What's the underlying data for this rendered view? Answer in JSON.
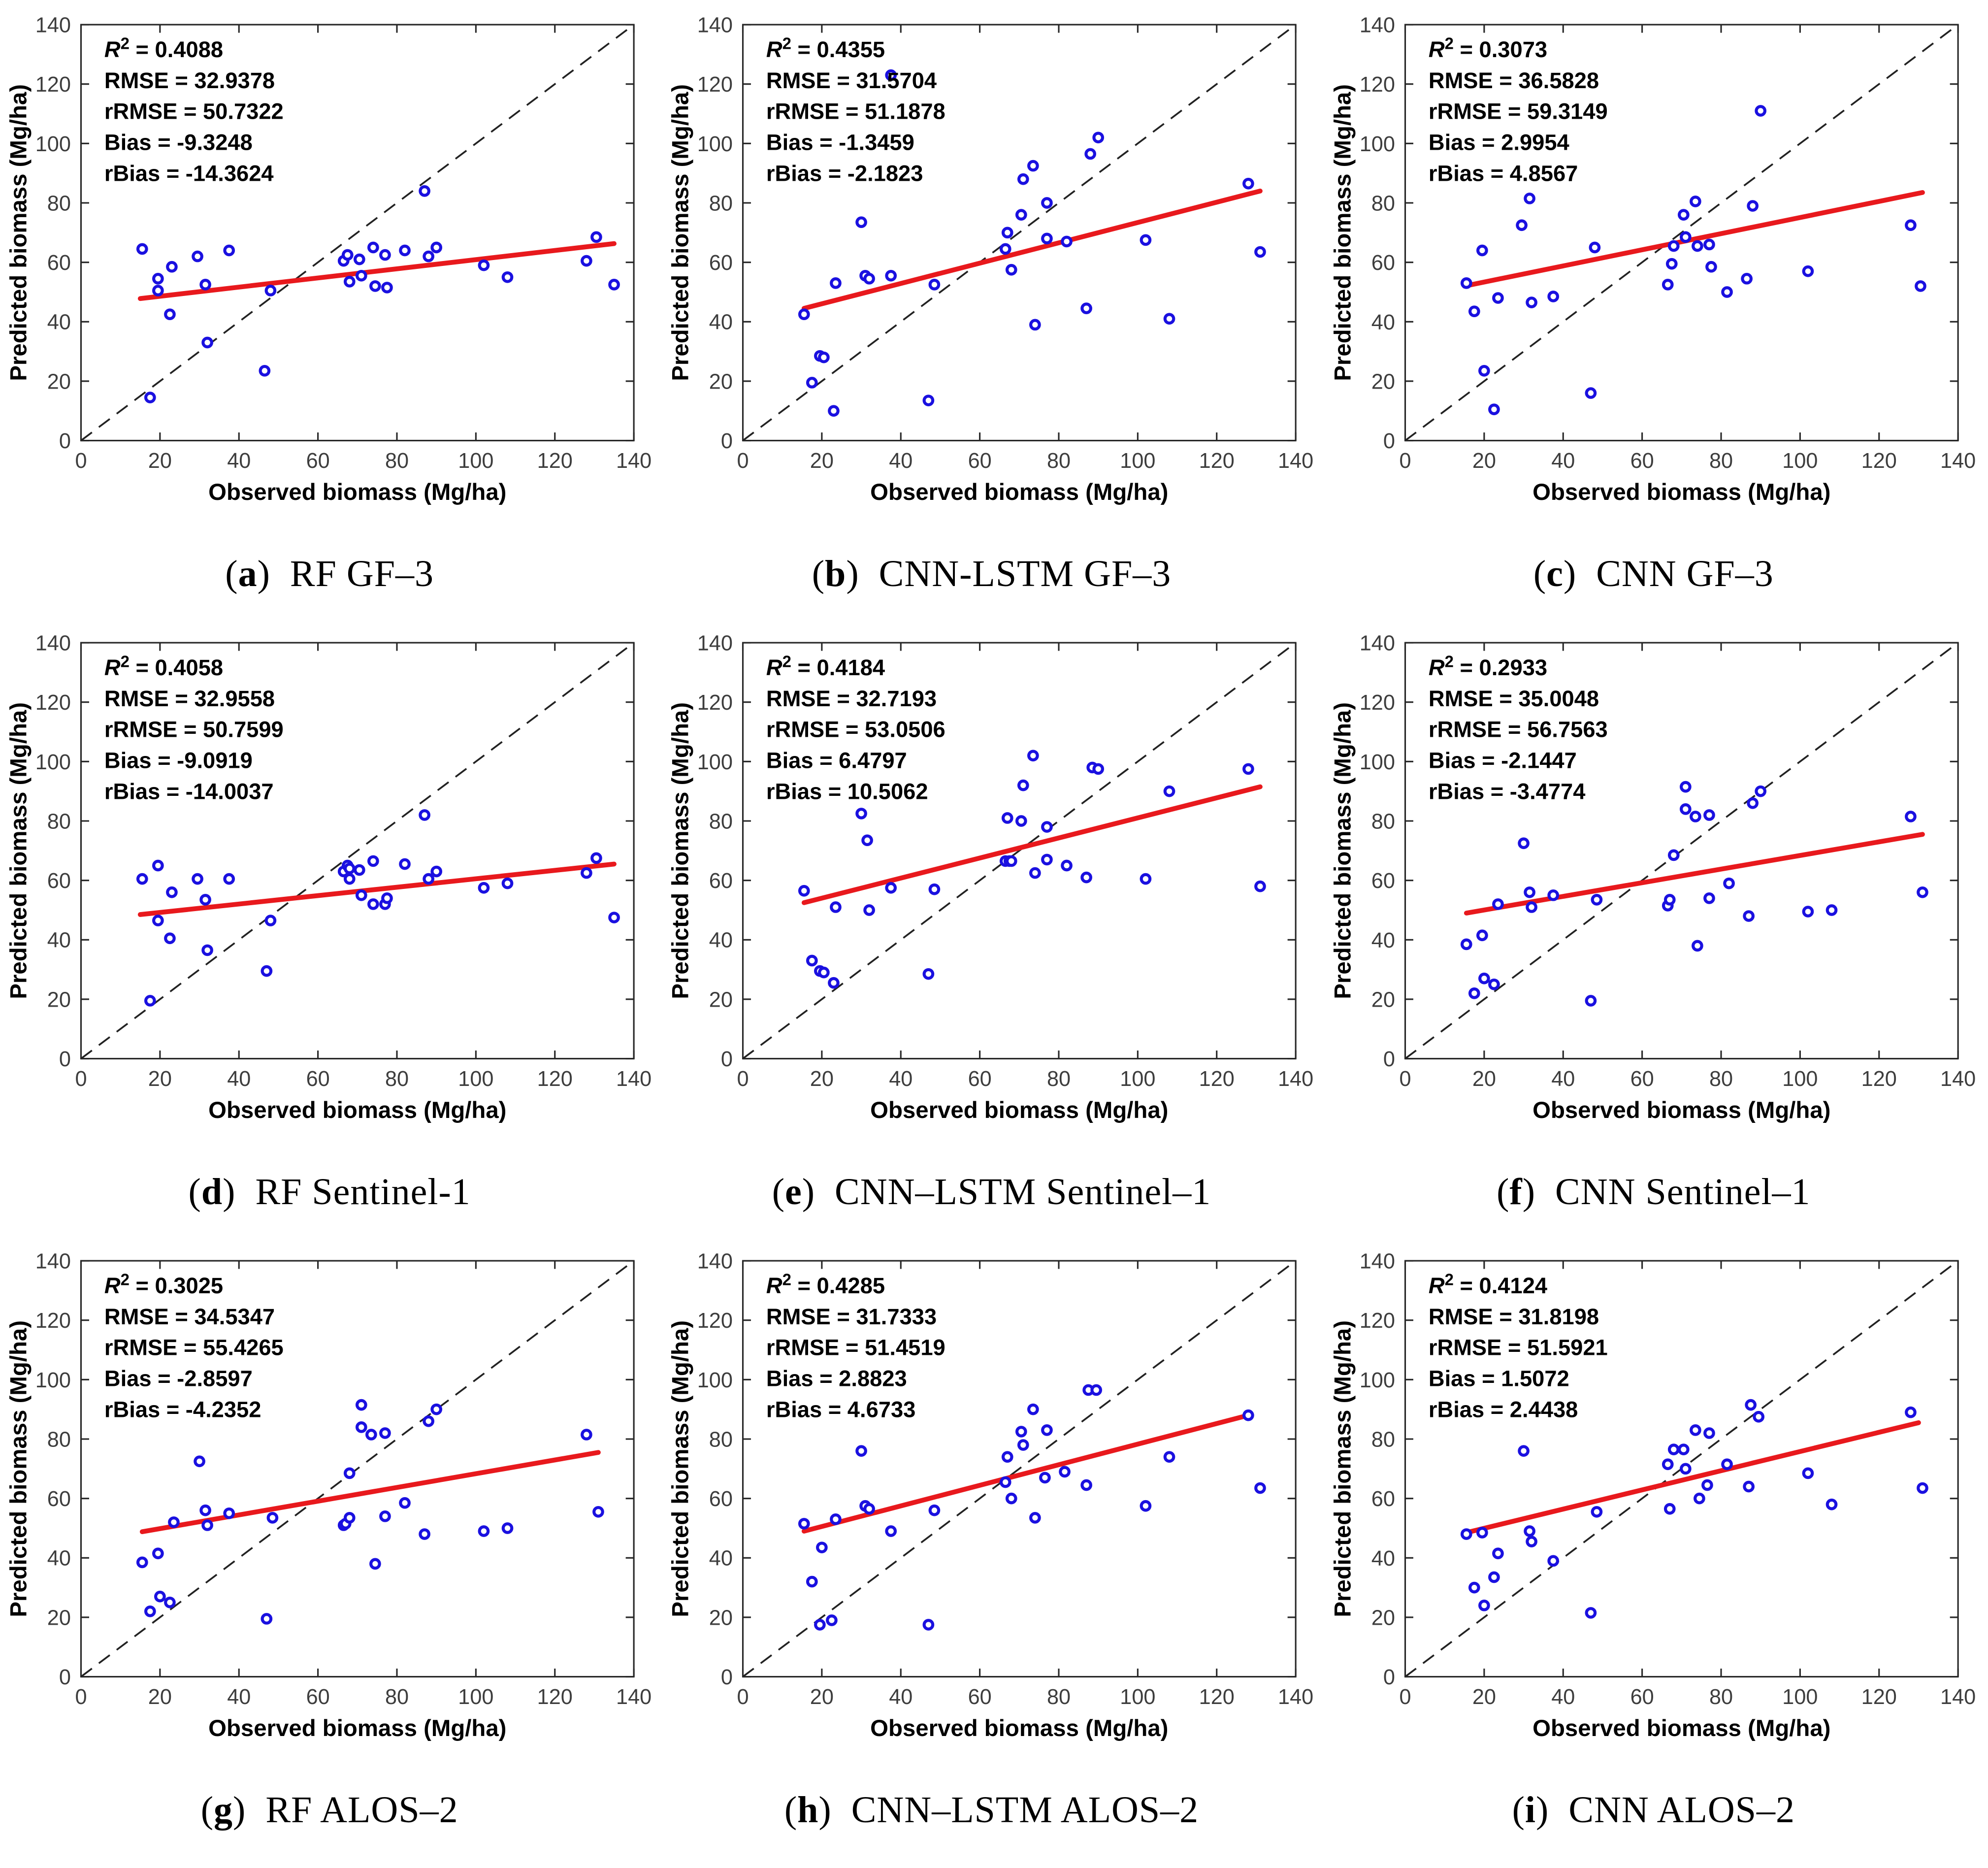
{
  "figure": {
    "paren_open": "(",
    "paren_close": ")",
    "eq": " = "
  },
  "axes": {
    "xlabel": "Observed biomass (Mg/ha)",
    "ylabel": "Predicted biomass (Mg/ha)",
    "xlim": [
      0,
      140
    ],
    "ylim": [
      0,
      140
    ],
    "ticks": [
      0,
      20,
      40,
      60,
      80,
      100,
      120,
      140
    ],
    "grid": "off",
    "legend": "none",
    "identity_line": "dashed 1:1"
  },
  "colors": {
    "marker": "#1a10e0",
    "marker_center": "#ffffff",
    "fit_line": "#e8191d",
    "identity_line": "#222222",
    "axis": "#262626",
    "tick_label": "#3d3d3d",
    "stats_text": "#000000"
  },
  "stats_labels": [
    {
      "key": "r2",
      "label": "R",
      "sup": "2"
    },
    {
      "key": "rmse",
      "label": "RMSE"
    },
    {
      "key": "rrmse",
      "label": "rRMSE"
    },
    {
      "key": "bias",
      "label": "Bias"
    },
    {
      "key": "rbias",
      "label": "rBias"
    }
  ],
  "chart_data": [
    {
      "type": "scatter",
      "letter": "a",
      "label": "RF GF–3",
      "stats": {
        "r2": "0.4088",
        "rmse": "32.9378",
        "rrmse": "50.7322",
        "bias": "-9.3248",
        "rbias": "-14.3624"
      },
      "fit": [
        [
          15,
          47.8
        ],
        [
          135,
          66.3
        ]
      ],
      "points": [
        [
          15.5,
          64.5
        ],
        [
          17.5,
          14.5
        ],
        [
          19.5,
          54.5
        ],
        [
          19.5,
          50.5
        ],
        [
          22.5,
          42.5
        ],
        [
          23,
          58.5
        ],
        [
          29.5,
          62
        ],
        [
          31.5,
          52.5
        ],
        [
          32,
          33
        ],
        [
          37.5,
          64
        ],
        [
          46.5,
          23.5
        ],
        [
          48,
          50.5
        ],
        [
          66.5,
          60.5
        ],
        [
          67.5,
          62.5
        ],
        [
          68,
          53.5
        ],
        [
          70.5,
          61
        ],
        [
          71,
          55.5
        ],
        [
          74,
          65
        ],
        [
          74.5,
          52
        ],
        [
          77,
          62.5
        ],
        [
          77.5,
          51.5
        ],
        [
          82,
          64
        ],
        [
          87,
          84
        ],
        [
          88,
          62
        ],
        [
          90,
          65
        ],
        [
          102,
          59
        ],
        [
          108,
          55
        ],
        [
          128,
          60.5
        ],
        [
          130.5,
          68.5
        ],
        [
          135,
          52.5
        ]
      ]
    },
    {
      "type": "scatter",
      "letter": "b",
      "label": "CNN-LSTM GF–3",
      "stats": {
        "r2": "0.4355",
        "rmse": "31.5704",
        "rrmse": "51.1878",
        "bias": "-1.3459",
        "rbias": "-2.1823"
      },
      "fit": [
        [
          15.5,
          44.5
        ],
        [
          131,
          84
        ]
      ],
      "points": [
        [
          15.5,
          42.5
        ],
        [
          17.5,
          19.5
        ],
        [
          19.5,
          28.5
        ],
        [
          20.5,
          28
        ],
        [
          23,
          10
        ],
        [
          23.5,
          53
        ],
        [
          30,
          73.5
        ],
        [
          31,
          55.5
        ],
        [
          32,
          54.5
        ],
        [
          37.5,
          123
        ],
        [
          37.5,
          55.5
        ],
        [
          47,
          13.5
        ],
        [
          48.5,
          52.5
        ],
        [
          66.5,
          64.5
        ],
        [
          67,
          70
        ],
        [
          68,
          57.5
        ],
        [
          70.5,
          76
        ],
        [
          71,
          88
        ],
        [
          73.5,
          92.5
        ],
        [
          74,
          39
        ],
        [
          77,
          80
        ],
        [
          77,
          68
        ],
        [
          82,
          67
        ],
        [
          87,
          44.5
        ],
        [
          88,
          96.5
        ],
        [
          90,
          102
        ],
        [
          102,
          67.5
        ],
        [
          108,
          41
        ],
        [
          128,
          86.5
        ],
        [
          131,
          63.5
        ]
      ]
    },
    {
      "type": "scatter",
      "letter": "c",
      "label": "CNN GF–3",
      "stats": {
        "r2": "0.3073",
        "rmse": "36.5828",
        "rrmse": "59.3149",
        "bias": "2.9954",
        "rbias": "4.8567"
      },
      "fit": [
        [
          15,
          52
        ],
        [
          131,
          83.5
        ]
      ],
      "points": [
        [
          15.5,
          53
        ],
        [
          17.5,
          43.5
        ],
        [
          19.5,
          64
        ],
        [
          20,
          23.5
        ],
        [
          22.5,
          10.5
        ],
        [
          23.5,
          48
        ],
        [
          29.5,
          72.5
        ],
        [
          31.5,
          81.5
        ],
        [
          32,
          46.5
        ],
        [
          37.5,
          48.5
        ],
        [
          47,
          16
        ],
        [
          48,
          65
        ],
        [
          66.5,
          52.5
        ],
        [
          67.5,
          59.5
        ],
        [
          68,
          65.5
        ],
        [
          70.5,
          76
        ],
        [
          71,
          68.5
        ],
        [
          73.5,
          80.5
        ],
        [
          74,
          65.5
        ],
        [
          77,
          66
        ],
        [
          77.5,
          58.5
        ],
        [
          81.5,
          50
        ],
        [
          86.5,
          54.5
        ],
        [
          88,
          79
        ],
        [
          90,
          111
        ],
        [
          102,
          57
        ],
        [
          128,
          72.5
        ],
        [
          130.5,
          52
        ]
      ]
    },
    {
      "type": "scatter",
      "letter": "d",
      "label": "RF Sentinel-1",
      "stats": {
        "r2": "0.4058",
        "rmse": "32.9558",
        "rrmse": "50.7599",
        "bias": "-9.0919",
        "rbias": "-14.0037"
      },
      "fit": [
        [
          15,
          48.5
        ],
        [
          135,
          65.5
        ]
      ],
      "points": [
        [
          15.5,
          60.5
        ],
        [
          17.5,
          19.5
        ],
        [
          19.5,
          65
        ],
        [
          19.5,
          46.5
        ],
        [
          22.5,
          40.5
        ],
        [
          23,
          56
        ],
        [
          29.5,
          60.5
        ],
        [
          31.5,
          53.5
        ],
        [
          32,
          36.5
        ],
        [
          37.5,
          60.5
        ],
        [
          47,
          29.5
        ],
        [
          48,
          46.5
        ],
        [
          66.5,
          63
        ],
        [
          67.5,
          65
        ],
        [
          68,
          64
        ],
        [
          68,
          60.5
        ],
        [
          70.5,
          63.5
        ],
        [
          71,
          55
        ],
        [
          74,
          66.5
        ],
        [
          74,
          52
        ],
        [
          77,
          52
        ],
        [
          77.5,
          54
        ],
        [
          82,
          65.5
        ],
        [
          87,
          82
        ],
        [
          88,
          60.5
        ],
        [
          90,
          63
        ],
        [
          102,
          57.5
        ],
        [
          108,
          59
        ],
        [
          128,
          62.5
        ],
        [
          130.5,
          67.5
        ],
        [
          135,
          47.5
        ]
      ]
    },
    {
      "type": "scatter",
      "letter": "e",
      "label": "CNN–LSTM Sentinel–1",
      "stats": {
        "r2": "0.4184",
        "rmse": "32.7193",
        "rrmse": "53.0506",
        "bias": "6.4797",
        "rbias": "10.5062"
      },
      "fit": [
        [
          15.5,
          52.5
        ],
        [
          131,
          91.5
        ]
      ],
      "points": [
        [
          15.5,
          56.5
        ],
        [
          17.5,
          33
        ],
        [
          19.5,
          29.5
        ],
        [
          20.5,
          29
        ],
        [
          23,
          25.5
        ],
        [
          23.5,
          51
        ],
        [
          30,
          82.5
        ],
        [
          31.5,
          73.5
        ],
        [
          32,
          50
        ],
        [
          37.5,
          57.5
        ],
        [
          47,
          28.5
        ],
        [
          48.5,
          57
        ],
        [
          66.5,
          66.5
        ],
        [
          67,
          81
        ],
        [
          67.5,
          66.5
        ],
        [
          68,
          66.5
        ],
        [
          70.5,
          80
        ],
        [
          71,
          92
        ],
        [
          73.5,
          102
        ],
        [
          74,
          62.5
        ],
        [
          77,
          78
        ],
        [
          77,
          67
        ],
        [
          82,
          65
        ],
        [
          87,
          61
        ],
        [
          88.5,
          98
        ],
        [
          90,
          97.5
        ],
        [
          102,
          60.5
        ],
        [
          108,
          90
        ],
        [
          128,
          97.5
        ],
        [
          131,
          58
        ]
      ]
    },
    {
      "type": "scatter",
      "letter": "f",
      "label": "CNN Sentinel–1",
      "stats": {
        "r2": "0.2933",
        "rmse": "35.0048",
        "rrmse": "56.7563",
        "bias": "-2.1447",
        "rbias": "-3.4774"
      },
      "fit": [
        [
          15.5,
          49
        ],
        [
          131,
          75.5
        ]
      ],
      "points": [
        [
          15.5,
          38.5
        ],
        [
          17.5,
          22
        ],
        [
          19.5,
          41.5
        ],
        [
          20,
          27
        ],
        [
          22.5,
          25
        ],
        [
          23.5,
          52
        ],
        [
          30,
          72.5
        ],
        [
          31.5,
          56
        ],
        [
          32,
          51
        ],
        [
          37.5,
          55
        ],
        [
          47,
          19.5
        ],
        [
          48.5,
          53.5
        ],
        [
          66.5,
          51.5
        ],
        [
          67,
          53.5
        ],
        [
          68,
          68.5
        ],
        [
          71,
          91.5
        ],
        [
          71,
          84
        ],
        [
          73.5,
          81.5
        ],
        [
          74,
          38
        ],
        [
          77,
          82
        ],
        [
          77,
          54
        ],
        [
          82,
          59
        ],
        [
          87,
          48
        ],
        [
          88,
          86
        ],
        [
          90,
          90
        ],
        [
          102,
          49.5
        ],
        [
          108,
          50
        ],
        [
          128,
          81.5
        ],
        [
          131,
          56
        ]
      ]
    },
    {
      "type": "scatter",
      "letter": "g",
      "label": "RF ALOS–2",
      "stats": {
        "r2": "0.3025",
        "rmse": "34.5347",
        "rrmse": "55.4265",
        "bias": "-2.8597",
        "rbias": "-4.2352"
      },
      "fit": [
        [
          15.5,
          48.8
        ],
        [
          131,
          75.5
        ]
      ],
      "points": [
        [
          15.5,
          38.5
        ],
        [
          17.5,
          22
        ],
        [
          19.5,
          41.5
        ],
        [
          20,
          27
        ],
        [
          22.5,
          25
        ],
        [
          23.5,
          52
        ],
        [
          30,
          72.5
        ],
        [
          31.5,
          56
        ],
        [
          32,
          51
        ],
        [
          37.5,
          55
        ],
        [
          47,
          19.5
        ],
        [
          48.5,
          53.5
        ],
        [
          66.5,
          51
        ],
        [
          67,
          51.5
        ],
        [
          68,
          53.5
        ],
        [
          68,
          68.5
        ],
        [
          71,
          91.5
        ],
        [
          71,
          84
        ],
        [
          73.5,
          81.5
        ],
        [
          74.5,
          38
        ],
        [
          77,
          82
        ],
        [
          77,
          54
        ],
        [
          82,
          58.5
        ],
        [
          87,
          48
        ],
        [
          88,
          86
        ],
        [
          90,
          90
        ],
        [
          102,
          49
        ],
        [
          108,
          50
        ],
        [
          128,
          81.5
        ],
        [
          131,
          55.5
        ]
      ]
    },
    {
      "type": "scatter",
      "letter": "h",
      "label": "CNN–LSTM ALOS–2",
      "stats": {
        "r2": "0.4285",
        "rmse": "31.7333",
        "rrmse": "51.4519",
        "bias": "2.8823",
        "rbias": "4.6733"
      },
      "fit": [
        [
          15.5,
          49
        ],
        [
          128,
          88
        ]
      ],
      "points": [
        [
          15.5,
          51.5
        ],
        [
          17.5,
          32
        ],
        [
          19.5,
          17.5
        ],
        [
          20,
          43.5
        ],
        [
          22.5,
          19
        ],
        [
          23.5,
          53
        ],
        [
          30,
          76
        ],
        [
          31,
          57.5
        ],
        [
          32,
          56.5
        ],
        [
          37.5,
          49
        ],
        [
          47,
          17.5
        ],
        [
          48.5,
          56
        ],
        [
          66.5,
          65.5
        ],
        [
          67,
          74
        ],
        [
          68,
          60
        ],
        [
          70.5,
          82.5
        ],
        [
          71,
          78
        ],
        [
          73.5,
          90
        ],
        [
          74,
          53.5
        ],
        [
          76.5,
          67
        ],
        [
          77,
          83
        ],
        [
          81.5,
          69
        ],
        [
          87,
          64.5
        ],
        [
          87.5,
          96.5
        ],
        [
          89.5,
          96.5
        ],
        [
          102,
          57.5
        ],
        [
          108,
          74
        ],
        [
          128,
          88
        ],
        [
          131,
          63.5
        ]
      ]
    },
    {
      "type": "scatter",
      "letter": "i",
      "label": "CNN ALOS–2",
      "stats": {
        "r2": "0.4124",
        "rmse": "31.8198",
        "rrmse": "51.5921",
        "bias": "1.5072",
        "rbias": "2.4438"
      },
      "fit": [
        [
          15.5,
          48.5
        ],
        [
          130,
          85.5
        ]
      ],
      "points": [
        [
          15.5,
          48
        ],
        [
          17.5,
          30
        ],
        [
          19.5,
          48.5
        ],
        [
          20,
          24
        ],
        [
          22.5,
          33.5
        ],
        [
          23.5,
          41.5
        ],
        [
          30,
          76
        ],
        [
          31.5,
          49
        ],
        [
          32,
          45.5
        ],
        [
          37.5,
          39
        ],
        [
          47,
          21.5
        ],
        [
          48.5,
          55.5
        ],
        [
          66.5,
          71.5
        ],
        [
          67,
          56.5
        ],
        [
          68,
          76.5
        ],
        [
          70.5,
          76.5
        ],
        [
          71,
          70
        ],
        [
          73.5,
          83
        ],
        [
          74.5,
          60
        ],
        [
          76.5,
          64.5
        ],
        [
          77,
          82
        ],
        [
          81.5,
          71.5
        ],
        [
          87,
          64
        ],
        [
          87.5,
          91.5
        ],
        [
          89.5,
          87.5
        ],
        [
          102,
          68.5
        ],
        [
          108,
          58
        ],
        [
          128,
          89
        ],
        [
          131,
          63.5
        ]
      ]
    }
  ]
}
